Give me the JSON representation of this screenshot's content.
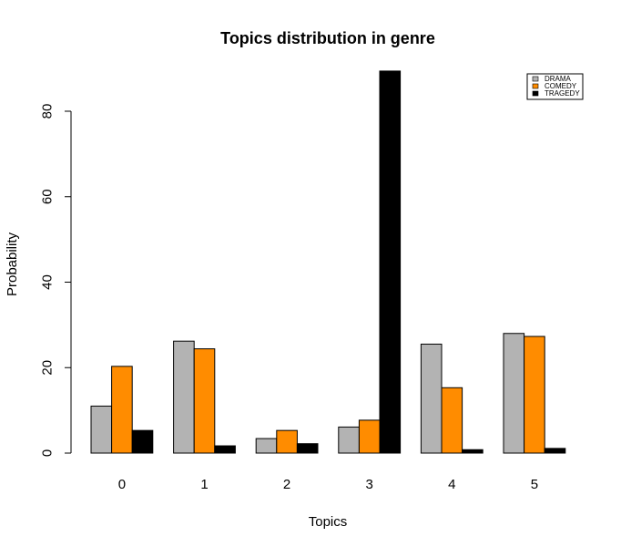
{
  "chart_data": {
    "type": "bar",
    "title": "Topics distribution in genre",
    "xlabel": "Topics",
    "ylabel": "Probability",
    "categories": [
      "0",
      "1",
      "2",
      "3",
      "4",
      "5"
    ],
    "series": [
      {
        "name": "DRAMA",
        "color": "#b3b3b3",
        "values": [
          11,
          26.2,
          3.4,
          6.1,
          25.5,
          28
        ]
      },
      {
        "name": "COMEDY",
        "color": "#ff8c00",
        "values": [
          20.3,
          24.4,
          5.3,
          7.7,
          15.3,
          27.3
        ]
      },
      {
        "name": "TRAGEDY",
        "color": "#000000",
        "values": [
          5.3,
          1.7,
          2.2,
          89.4,
          0.8,
          1.1
        ]
      }
    ],
    "ylim": [
      0,
      89.4
    ],
    "yticks": [
      0,
      20,
      40,
      60,
      80
    ],
    "grid": false,
    "legend": "top-right"
  }
}
